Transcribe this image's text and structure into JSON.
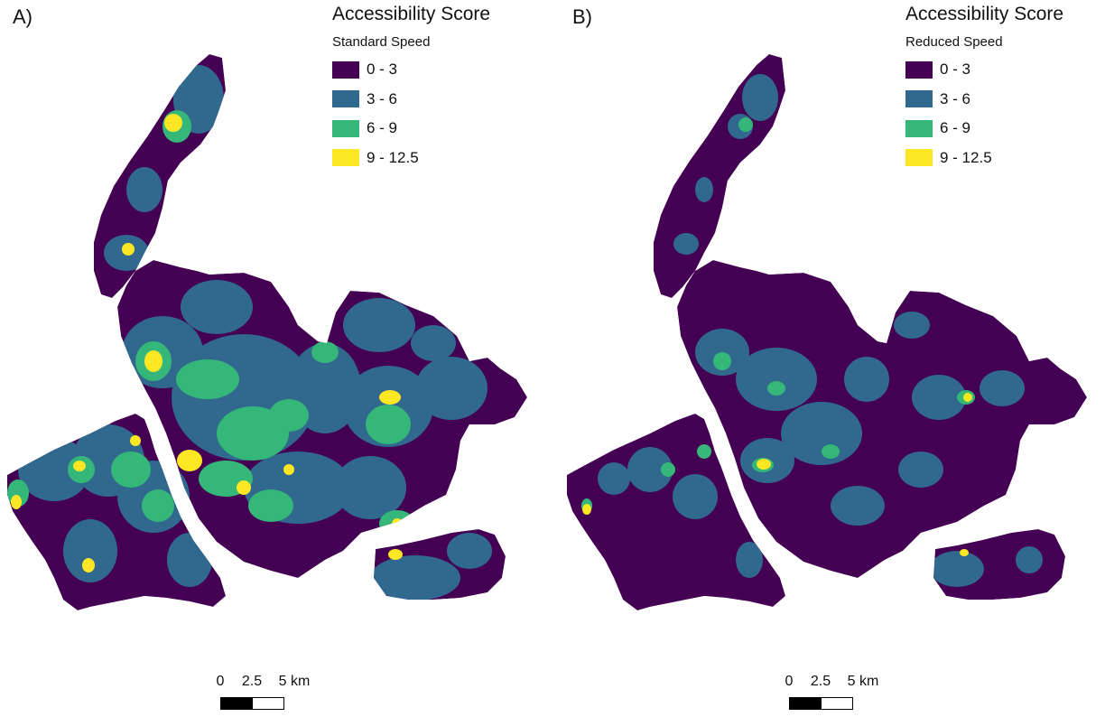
{
  "colors": {
    "class_0_3": "#440154",
    "class_3_6": "#31688e",
    "class_6_9": "#35b779",
    "class_9_12_5": "#fde725"
  },
  "panels": [
    {
      "label": "A)",
      "legend_title": "Accessibility Score",
      "legend_subtitle": "Standard Speed",
      "legend_items": [
        "0 - 3",
        "3 - 6",
        "6 - 9",
        "9 - 12.5"
      ]
    },
    {
      "label": "B)",
      "legend_title": "Accessibility Score",
      "legend_subtitle": "Reduced Speed",
      "legend_items": [
        "0 - 3",
        "3 - 6",
        "6 - 9",
        "9 - 12.5"
      ]
    }
  ],
  "scale_bar": {
    "labels": [
      "0",
      "2.5",
      "5 km"
    ]
  }
}
